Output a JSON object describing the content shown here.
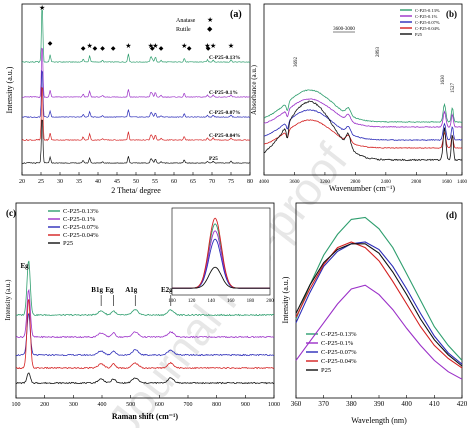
{
  "watermark": "Journal Pre-proof",
  "colors": {
    "c013": "#2e9e6e",
    "c01": "#9b30c8",
    "c007": "#2b2bb8",
    "c004": "#d42020",
    "p25": "#111111",
    "axis": "#000000",
    "watermark": "#c9c9c9"
  },
  "chart_data": [
    {
      "id": "a",
      "panel_label": "(a)",
      "type": "line",
      "xlabel": "2 Theta/ degree",
      "ylabel": "Intensity (a.u.)",
      "xlim": [
        20,
        80
      ],
      "xticks": [
        "20",
        "25",
        "30",
        "35",
        "40",
        "45",
        "50",
        "55",
        "60",
        "65",
        "70",
        "75",
        "80"
      ],
      "legend": [
        {
          "symbol": "★",
          "label": "Anatase"
        },
        {
          "symbol": "◆",
          "label": "Rutile"
        }
      ],
      "star_x": [
        25.3,
        37.8,
        48.0,
        53.9,
        55.1,
        62.7,
        68.8,
        70.3,
        75.0
      ],
      "diamond_x": [
        27.4,
        36.1,
        39.2,
        41.2,
        44.0,
        54.3,
        56.6,
        64.0,
        69.0
      ],
      "anatase_peaks": [
        {
          "x": 25.3,
          "h": 1.0
        },
        {
          "x": 37.8,
          "h": 0.2
        },
        {
          "x": 48.0,
          "h": 0.26
        },
        {
          "x": 53.9,
          "h": 0.16
        },
        {
          "x": 55.1,
          "h": 0.16
        },
        {
          "x": 62.7,
          "h": 0.12
        },
        {
          "x": 68.8,
          "h": 0.07
        },
        {
          "x": 70.3,
          "h": 0.07
        },
        {
          "x": 75.0,
          "h": 0.07
        }
      ],
      "rutile_peaks": [
        {
          "x": 27.4,
          "h": 0.22
        },
        {
          "x": 36.1,
          "h": 0.1
        },
        {
          "x": 41.2,
          "h": 0.05
        },
        {
          "x": 54.3,
          "h": 0.1
        },
        {
          "x": 56.6,
          "h": 0.05
        }
      ],
      "series": [
        {
          "name": "C-P25-0.13%",
          "color": "#2e9e6e"
        },
        {
          "name": "C-P25-0.1%",
          "color": "#9b30c8"
        },
        {
          "name": "C-P25-0.07%",
          "color": "#2b2bb8"
        },
        {
          "name": "C-P25-0.04%",
          "color": "#d42020"
        },
        {
          "name": "P25",
          "color": "#111111"
        }
      ]
    },
    {
      "id": "b",
      "panel_label": "(b)",
      "type": "line",
      "xlabel": "Wavenumber (cm⁻¹)",
      "ylabel": "Absorbance (a.u.)",
      "xlim": [
        4000,
        1400
      ],
      "xticks": [
        "4000",
        "3600",
        "3200",
        "2800",
        "2400",
        "2000",
        "1600",
        "1400"
      ],
      "annotations": [
        "3600-3000",
        "3692",
        "2893",
        "1630",
        "1527"
      ],
      "series": [
        {
          "name": "C-P25-0.13%",
          "color": "#2e9e6e"
        },
        {
          "name": "C-P25-0.1%",
          "color": "#9b30c8"
        },
        {
          "name": "C-P25-0.07%",
          "color": "#2b2bb8"
        },
        {
          "name": "C-P25-0.04%",
          "color": "#d42020"
        },
        {
          "name": "P25",
          "color": "#111111"
        }
      ]
    },
    {
      "id": "c",
      "panel_label": "(c)",
      "type": "line",
      "xlabel": "Raman shift (cm⁻¹)",
      "ylabel": "Intensity (a.u.)",
      "xlim": [
        100,
        1000
      ],
      "xticks": [
        "100",
        "200",
        "300",
        "400",
        "500",
        "600",
        "700",
        "800",
        "900",
        "1000"
      ],
      "peak_labels": [
        {
          "label": "Eg",
          "x": 144
        },
        {
          "label": "B1g",
          "x": 397
        },
        {
          "label": "Eg",
          "x": 440
        },
        {
          "label": "A1g",
          "x": 516
        },
        {
          "label": "E2g",
          "x": 640
        }
      ],
      "inset": {
        "xlim": [
          100,
          200
        ],
        "xticks": [
          "100",
          "120",
          "140",
          "160",
          "180",
          "200"
        ],
        "peak_x": 144,
        "heights": [
          0.92,
          0.82,
          0.7,
          1.0,
          0.3
        ]
      },
      "series": [
        {
          "name": "C-P25-0.13%",
          "color": "#2e9e6e"
        },
        {
          "name": "C-P25-0.1%",
          "color": "#9b30c8"
        },
        {
          "name": "C-P25-0.07%",
          "color": "#2b2bb8"
        },
        {
          "name": "C-P25-0.04%",
          "color": "#d42020"
        },
        {
          "name": "P25",
          "color": "#111111"
        }
      ]
    },
    {
      "id": "d",
      "panel_label": "(d)",
      "type": "line",
      "xlabel": "Wavelength (nm)",
      "ylabel": "Intensity (a.u.)",
      "xlim": [
        360,
        420
      ],
      "xticks": [
        "360",
        "370",
        "380",
        "390",
        "400",
        "410",
        "420"
      ],
      "series": [
        {
          "name": "C-P25-0.13%",
          "color": "#2e9e6e",
          "x": [
            360,
            365,
            370,
            375,
            380,
            385,
            390,
            395,
            400,
            405,
            410,
            415,
            420
          ],
          "y": [
            0.42,
            0.6,
            0.76,
            0.87,
            0.95,
            0.96,
            0.9,
            0.8,
            0.66,
            0.52,
            0.38,
            0.28,
            0.2
          ]
        },
        {
          "name": "C-P25-0.1%",
          "color": "#9b30c8",
          "x": [
            360,
            365,
            370,
            375,
            380,
            385,
            390,
            395,
            400,
            405,
            410,
            415,
            420
          ],
          "y": [
            0.2,
            0.3,
            0.4,
            0.5,
            0.58,
            0.6,
            0.55,
            0.47,
            0.37,
            0.28,
            0.2,
            0.14,
            0.1
          ]
        },
        {
          "name": "C-P25-0.07%",
          "color": "#2b2bb8",
          "x": [
            360,
            365,
            370,
            375,
            380,
            385,
            390,
            395,
            400,
            405,
            410,
            415,
            420
          ],
          "y": [
            0.4,
            0.56,
            0.7,
            0.78,
            0.82,
            0.83,
            0.79,
            0.7,
            0.58,
            0.45,
            0.33,
            0.24,
            0.18
          ]
        },
        {
          "name": "C-P25-0.04%",
          "color": "#d42020",
          "x": [
            360,
            365,
            370,
            375,
            380,
            385,
            390,
            395,
            400,
            405,
            410,
            415,
            420
          ],
          "y": [
            0.43,
            0.58,
            0.71,
            0.8,
            0.83,
            0.8,
            0.73,
            0.62,
            0.5,
            0.38,
            0.28,
            0.21,
            0.16
          ]
        },
        {
          "name": "P25",
          "color": "#111111",
          "x": [
            360,
            365,
            370,
            375,
            380,
            385,
            390,
            395,
            400,
            405,
            410,
            415,
            420
          ],
          "y": [
            0.45,
            0.6,
            0.72,
            0.79,
            0.82,
            0.82,
            0.77,
            0.67,
            0.55,
            0.42,
            0.31,
            0.23,
            0.17
          ]
        }
      ]
    }
  ]
}
